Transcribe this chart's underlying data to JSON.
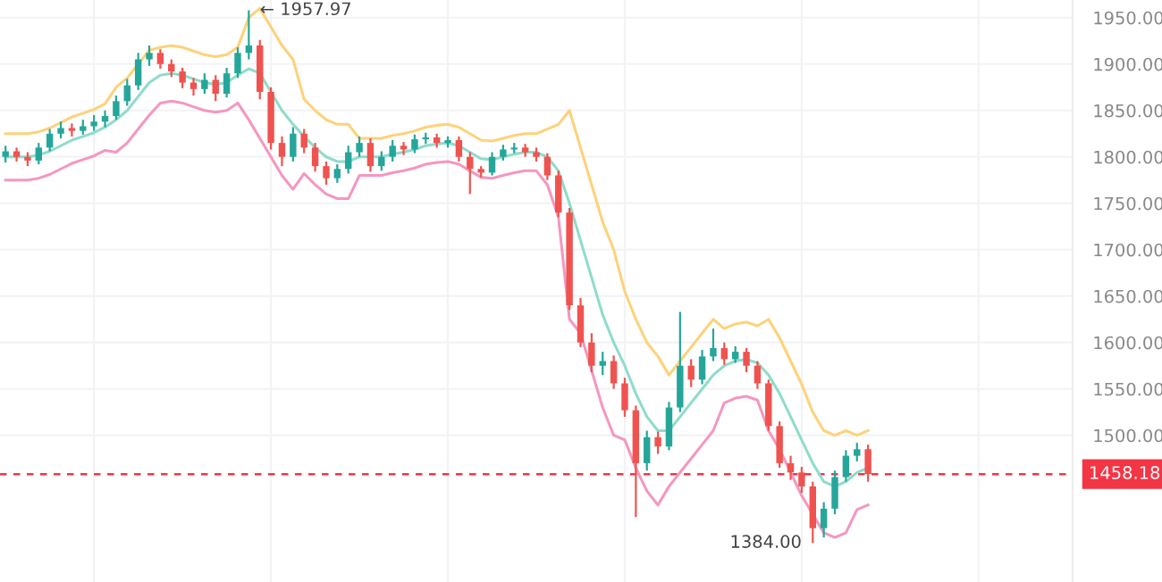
{
  "chart_data": {
    "type": "candlestick",
    "categories": [
      null,
      null,
      null,
      null,
      null,
      null,
      null,
      null,
      null,
      null,
      null,
      null,
      null,
      null,
      null,
      null,
      null,
      null,
      null,
      null,
      null,
      null,
      null,
      null,
      null,
      null,
      null,
      null,
      null,
      null,
      null,
      null,
      null,
      null,
      null,
      null,
      null,
      null,
      null,
      null,
      null,
      null,
      null,
      null,
      null,
      null,
      null,
      null,
      null,
      null,
      null,
      null,
      null,
      null,
      null,
      null,
      null,
      null,
      null,
      null,
      null,
      null,
      null,
      null,
      null,
      null,
      null,
      null,
      null,
      null,
      null,
      null,
      null,
      null,
      null,
      null,
      null,
      null,
      null,
      null,
      null,
      null,
      null,
      null,
      null,
      null,
      null,
      null,
      null,
      null,
      null,
      null,
      null,
      null,
      null,
      null,
      null
    ],
    "ohlc": [
      [
        1800,
        1812,
        1794,
        1806
      ],
      [
        1806,
        1810,
        1795,
        1800
      ],
      [
        1800,
        1805,
        1790,
        1796
      ],
      [
        1796,
        1815,
        1792,
        1810
      ],
      [
        1810,
        1830,
        1806,
        1825
      ],
      [
        1825,
        1838,
        1820,
        1831
      ],
      [
        1831,
        1836,
        1822,
        1828
      ],
      [
        1828,
        1840,
        1824,
        1833
      ],
      [
        1833,
        1845,
        1828,
        1838
      ],
      [
        1838,
        1850,
        1832,
        1844
      ],
      [
        1844,
        1866,
        1840,
        1860
      ],
      [
        1860,
        1884,
        1855,
        1877
      ],
      [
        1877,
        1912,
        1872,
        1905
      ],
      [
        1905,
        1920,
        1898,
        1912
      ],
      [
        1912,
        1916,
        1895,
        1900
      ],
      [
        1900,
        1905,
        1886,
        1892
      ],
      [
        1892,
        1896,
        1874,
        1880
      ],
      [
        1880,
        1885,
        1866,
        1873
      ],
      [
        1873,
        1890,
        1868,
        1883
      ],
      [
        1883,
        1888,
        1860,
        1868
      ],
      [
        1868,
        1896,
        1864,
        1890
      ],
      [
        1890,
        1918,
        1885,
        1912
      ],
      [
        1912,
        1957.97,
        1905,
        1920
      ],
      [
        1920,
        1926,
        1862,
        1870
      ],
      [
        1870,
        1875,
        1808,
        1815
      ],
      [
        1815,
        1822,
        1790,
        1800
      ],
      [
        1800,
        1832,
        1795,
        1825
      ],
      [
        1825,
        1830,
        1804,
        1810
      ],
      [
        1810,
        1815,
        1784,
        1790
      ],
      [
        1790,
        1795,
        1770,
        1777
      ],
      [
        1777,
        1792,
        1772,
        1787
      ],
      [
        1787,
        1812,
        1782,
        1805
      ],
      [
        1805,
        1822,
        1800,
        1815
      ],
      [
        1815,
        1820,
        1784,
        1790
      ],
      [
        1790,
        1806,
        1785,
        1800
      ],
      [
        1800,
        1818,
        1795,
        1812
      ],
      [
        1812,
        1816,
        1802,
        1808
      ],
      [
        1808,
        1824,
        1804,
        1819
      ],
      [
        1819,
        1826,
        1814,
        1821
      ],
      [
        1821,
        1825,
        1810,
        1815
      ],
      [
        1815,
        1822,
        1810,
        1818
      ],
      [
        1818,
        1822,
        1795,
        1800
      ],
      [
        1800,
        1805,
        1760,
        1787
      ],
      [
        1787,
        1790,
        1778,
        1783
      ],
      [
        1783,
        1805,
        1780,
        1800
      ],
      [
        1800,
        1813,
        1796,
        1808
      ],
      [
        1808,
        1815,
        1804,
        1810
      ],
      [
        1810,
        1814,
        1800,
        1805
      ],
      [
        1805,
        1810,
        1795,
        1800
      ],
      [
        1800,
        1804,
        1775,
        1780
      ],
      [
        1780,
        1785,
        1735,
        1740
      ],
      [
        1740,
        1745,
        1635,
        1640
      ],
      [
        1640,
        1648,
        1595,
        1600
      ],
      [
        1600,
        1610,
        1568,
        1575
      ],
      [
        1575,
        1590,
        1565,
        1580
      ],
      [
        1580,
        1586,
        1550,
        1556
      ],
      [
        1556,
        1562,
        1520,
        1527
      ],
      [
        1527,
        1532,
        1412,
        1470
      ],
      [
        1470,
        1505,
        1462,
        1498
      ],
      [
        1498,
        1504,
        1480,
        1488
      ],
      [
        1488,
        1536,
        1484,
        1530
      ],
      [
        1530,
        1633,
        1525,
        1575
      ],
      [
        1575,
        1582,
        1552,
        1560
      ],
      [
        1560,
        1592,
        1555,
        1585
      ],
      [
        1585,
        1615,
        1580,
        1594
      ],
      [
        1594,
        1600,
        1576,
        1582
      ],
      [
        1582,
        1596,
        1578,
        1590
      ],
      [
        1590,
        1594,
        1568,
        1575
      ],
      [
        1575,
        1580,
        1550,
        1556
      ],
      [
        1556,
        1560,
        1505,
        1510
      ],
      [
        1510,
        1515,
        1465,
        1470
      ],
      [
        1470,
        1478,
        1452,
        1460
      ],
      [
        1460,
        1466,
        1438,
        1445
      ],
      [
        1445,
        1450,
        1384,
        1400
      ],
      [
        1400,
        1428,
        1390,
        1421
      ],
      [
        1421,
        1462,
        1415,
        1455
      ],
      [
        1455,
        1484,
        1450,
        1478
      ],
      [
        1478,
        1492,
        1472,
        1485
      ],
      [
        1485,
        1490,
        1450,
        1458.18
      ],
      null,
      null,
      null,
      null,
      null,
      null,
      null,
      null,
      null,
      null,
      null,
      null,
      null,
      null,
      null,
      null,
      null,
      null
    ],
    "series": [
      {
        "type": "line",
        "color": "#fdd27a",
        "values": [
          1825,
          1825,
          1825,
          1827,
          1831,
          1837,
          1843,
          1847,
          1851,
          1857,
          1875,
          1885,
          1900,
          1915,
          1918,
          1920,
          1918,
          1914,
          1910,
          1908,
          1910,
          1918,
          1950,
          1960,
          1940,
          1920,
          1905,
          1862,
          1850,
          1840,
          1835,
          1835,
          1820,
          1820,
          1820,
          1823,
          1825,
          1828,
          1832,
          1834,
          1835,
          1832,
          1825,
          1818,
          1817,
          1820,
          1823,
          1825,
          1825,
          1830,
          1835,
          1850,
          1810,
          1770,
          1730,
          1700,
          1655,
          1625,
          1600,
          1585,
          1565,
          1580,
          1595,
          1610,
          1625,
          1615,
          1620,
          1622,
          1618,
          1625,
          1605,
          1580,
          1555,
          1525,
          1505,
          1500,
          1505,
          1500,
          1505,
          null,
          null,
          null,
          null,
          null,
          null,
          null,
          null,
          null,
          null,
          null,
          null,
          null,
          null,
          null,
          null,
          null,
          null
        ]
      },
      {
        "type": "line",
        "color": "#8fdccb",
        "values": [
          1800,
          1800,
          1800,
          1802,
          1806,
          1812,
          1818,
          1822,
          1826,
          1832,
          1840,
          1850,
          1865,
          1880,
          1888,
          1890,
          1888,
          1884,
          1880,
          1878,
          1880,
          1888,
          1895,
          1890,
          1870,
          1850,
          1835,
          1822,
          1810,
          1800,
          1795,
          1795,
          1800,
          1800,
          1800,
          1803,
          1805,
          1808,
          1812,
          1814,
          1815,
          1812,
          1805,
          1798,
          1797,
          1800,
          1803,
          1805,
          1805,
          1800,
          1785,
          1750,
          1710,
          1670,
          1630,
          1600,
          1575,
          1545,
          1520,
          1505,
          1505,
          1520,
          1535,
          1550,
          1565,
          1575,
          1580,
          1582,
          1578,
          1565,
          1545,
          1520,
          1495,
          1470,
          1450,
          1445,
          1450,
          1460,
          1465,
          null,
          null,
          null,
          null,
          null,
          null,
          null,
          null,
          null,
          null,
          null,
          null,
          null,
          null,
          null,
          null,
          null,
          null
        ]
      },
      {
        "type": "line",
        "color": "#f497c0",
        "values": [
          1775,
          1775,
          1775,
          1777,
          1781,
          1787,
          1793,
          1797,
          1801,
          1807,
          1805,
          1815,
          1830,
          1845,
          1858,
          1860,
          1858,
          1854,
          1850,
          1848,
          1850,
          1858,
          1840,
          1820,
          1800,
          1780,
          1765,
          1782,
          1770,
          1760,
          1755,
          1755,
          1780,
          1780,
          1780,
          1783,
          1785,
          1788,
          1792,
          1794,
          1795,
          1792,
          1785,
          1778,
          1777,
          1780,
          1783,
          1785,
          1785,
          1770,
          1735,
          1625,
          1610,
          1570,
          1530,
          1500,
          1495,
          1465,
          1440,
          1425,
          1445,
          1460,
          1475,
          1490,
          1505,
          1535,
          1540,
          1542,
          1538,
          1505,
          1485,
          1460,
          1435,
          1415,
          1395,
          1390,
          1395,
          1420,
          1425,
          null,
          null,
          null,
          null,
          null,
          null,
          null,
          null,
          null,
          null,
          null,
          null,
          null,
          null,
          null,
          null,
          null,
          null
        ]
      }
    ],
    "ylim": [
      1342,
      1969
    ],
    "yticks": [
      {
        "value": 1500,
        "label": "1500.00"
      },
      {
        "value": 1550,
        "label": "1550.00"
      },
      {
        "value": 1600,
        "label": "1600.00"
      },
      {
        "value": 1650,
        "label": "1650.00"
      },
      {
        "value": 1700,
        "label": "1700.00"
      },
      {
        "value": 1750,
        "label": "1750.00"
      },
      {
        "value": 1800,
        "label": "1800.00"
      },
      {
        "value": 1850,
        "label": "1850.00"
      },
      {
        "value": 1900,
        "label": "1900.00"
      },
      {
        "value": 1950,
        "label": "1950.00"
      }
    ],
    "tick_labels": "y",
    "grid": true,
    "ref_lines": [
      {
        "axis": "y",
        "value": 1458.18,
        "label": "1458.18",
        "color": "#f23645",
        "line_style": "dashed"
      }
    ],
    "annotations": [
      "← 1957.97",
      "1384.00"
    ]
  }
}
